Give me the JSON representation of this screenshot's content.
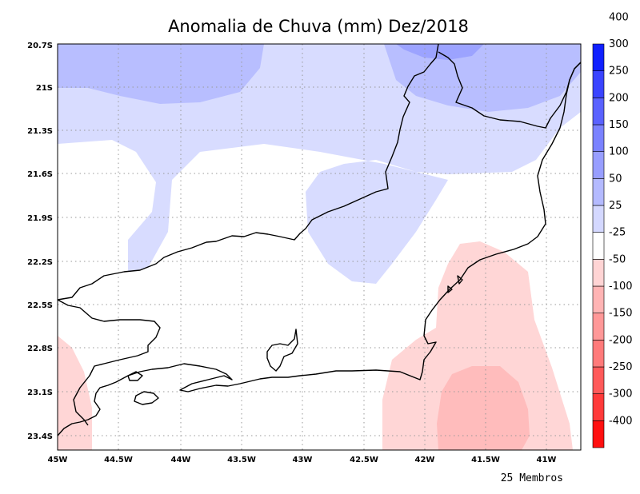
{
  "title": "Anomalia de Chuva (mm) Dez/2018",
  "footer": "25 Membros",
  "lat_labels": [
    "20.7S",
    "21S",
    "21.3S",
    "21.6S",
    "21.9S",
    "22.2S",
    "22.5S",
    "22.8S",
    "23.1S",
    "23.4S"
  ],
  "lon_labels": [
    "45W",
    "44.5W",
    "44W",
    "43.5W",
    "43W",
    "42.5W",
    "42W",
    "41.5W",
    "41W"
  ],
  "colorbar": {
    "colors": [
      "#ff1010",
      "#ff3a3a",
      "#ff5a5a",
      "#ff7a7a",
      "#ff9898",
      "#ffb4b4",
      "#ffd4d4",
      "#ffffff",
      "#d4d8ff",
      "#b4baff",
      "#989eff",
      "#7a82ff",
      "#5a62ff",
      "#3a44ff",
      "#1020ff"
    ],
    "labels": [
      "-400",
      "-300",
      "-250",
      "-200",
      "-150",
      "-100",
      "-50",
      "-25",
      "25",
      "50",
      "100",
      "150",
      "200",
      "250",
      "300",
      "400"
    ]
  }
}
